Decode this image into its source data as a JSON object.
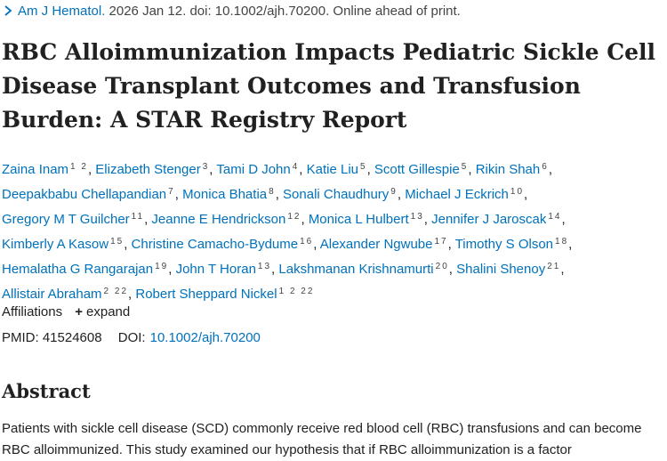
{
  "citation": {
    "journal": "Am J Hematol.",
    "details": "2026 Jan 12. doi: 10.1002/ajh.70200. Online ahead of print."
  },
  "title": "RBC Alloimmunization Impacts Pediatric Sickle Cell Disease Transplant Outcomes and Transfusion Burden: A STAR Registry Report",
  "authors": [
    {
      "name": "Zaina Inam",
      "aff": "1 2"
    },
    {
      "name": "Elizabeth Stenger",
      "aff": "3"
    },
    {
      "name": "Tami D John",
      "aff": "4"
    },
    {
      "name": "Katie Liu",
      "aff": "5"
    },
    {
      "name": "Scott Gillespie",
      "aff": "5"
    },
    {
      "name": "Rikin Shah",
      "aff": "6"
    },
    {
      "name": "Deepakbabu Chellapandian",
      "aff": "7"
    },
    {
      "name": "Monica Bhatia",
      "aff": "8"
    },
    {
      "name": "Sonali Chaudhury",
      "aff": "9"
    },
    {
      "name": "Michael J Eckrich",
      "aff": "10"
    },
    {
      "name": "Gregory M T Guilcher",
      "aff": "11"
    },
    {
      "name": "Jeanne E Hendrickson",
      "aff": "12"
    },
    {
      "name": "Monica L Hulbert",
      "aff": "13"
    },
    {
      "name": "Jennifer J Jaroscak",
      "aff": "14"
    },
    {
      "name": "Kimberly A Kasow",
      "aff": "15"
    },
    {
      "name": "Christine Camacho-Bydume",
      "aff": "16"
    },
    {
      "name": "Alexander Ngwube",
      "aff": "17"
    },
    {
      "name": "Timothy S Olson",
      "aff": "18"
    },
    {
      "name": "Hemalatha G Rangarajan",
      "aff": "19"
    },
    {
      "name": "John T Horan",
      "aff": "13"
    },
    {
      "name": "Lakshmanan Krishnamurti",
      "aff": "20"
    },
    {
      "name": "Shalini Shenoy",
      "aff": "21"
    },
    {
      "name": "Allistair Abraham",
      "aff": "2 22"
    },
    {
      "name": "Robert Sheppard Nickel",
      "aff": "1 2 22"
    }
  ],
  "affiliations": {
    "label": "Affiliations",
    "expand_label": "expand"
  },
  "ids": {
    "pmid_label": "PMID:",
    "pmid": "41524608",
    "doi_label": "DOI:",
    "doi": "10.1002/ajh.70200"
  },
  "abstract": {
    "heading": "Abstract",
    "text": "Patients with sickle cell disease (SCD) commonly receive red blood cell (RBC) transfusions and can become RBC alloimmunized. This study examined our hypothesis that if RBC alloimmunization is a factor"
  },
  "icons": {
    "citation_arrow": "chevron-right-icon",
    "expand": "plus-icon"
  },
  "colors": {
    "link": "#0071bc",
    "text": "#212121"
  }
}
